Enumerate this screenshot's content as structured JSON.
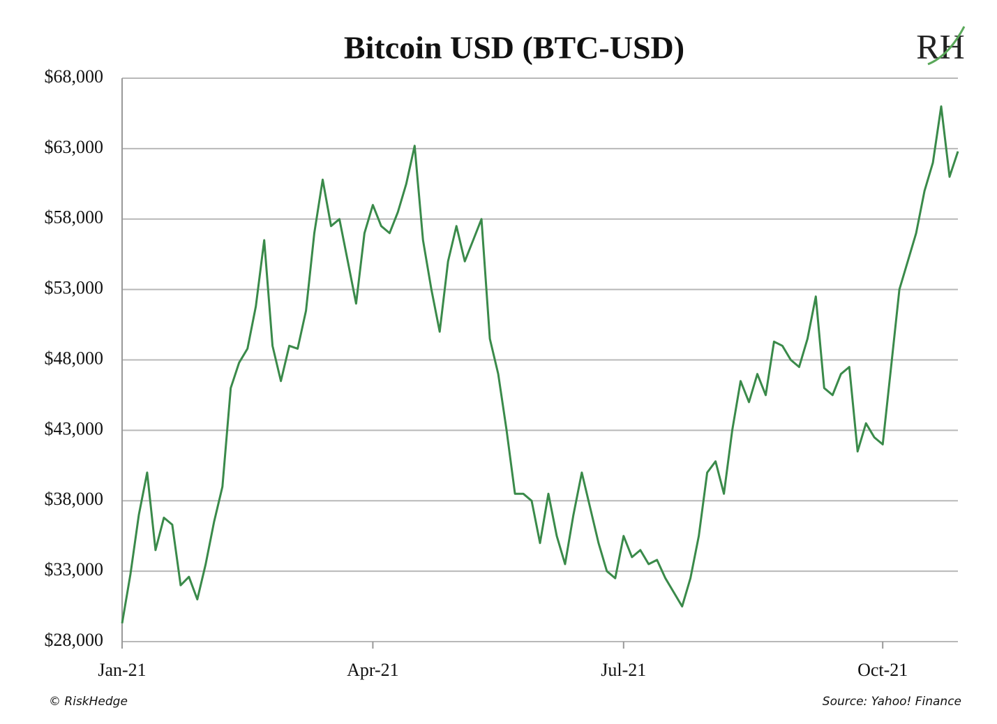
{
  "chart_data": {
    "type": "line",
    "title": "Bitcoin USD (BTC-USD)",
    "logo": "RH",
    "copyright": "© RiskHedge",
    "source": "Source: Yahoo! Finance",
    "categories": [
      "Jan-21",
      null,
      null,
      null,
      null,
      null,
      null,
      null,
      null,
      null,
      null,
      null,
      null,
      null,
      null,
      null,
      null,
      null,
      null,
      null,
      null,
      null,
      null,
      null,
      null,
      null,
      null,
      null,
      null,
      null,
      "Apr-21",
      null,
      null,
      null,
      null,
      null,
      null,
      null,
      null,
      null,
      null,
      null,
      null,
      null,
      null,
      null,
      null,
      null,
      null,
      null,
      null,
      null,
      null,
      null,
      null,
      null,
      null,
      null,
      null,
      null,
      "Jul-21",
      null,
      null,
      null,
      null,
      null,
      null,
      null,
      null,
      null,
      null,
      null,
      null,
      null,
      null,
      null,
      null,
      null,
      null,
      null,
      null,
      null,
      null,
      null,
      null,
      null,
      null,
      null,
      null,
      null,
      null,
      "Oct-21",
      null,
      null,
      null,
      null,
      null,
      null,
      null,
      null,
      null
    ],
    "series": [
      {
        "name": "BTC-USD",
        "color": "#3a8a4a",
        "values": [
          29300,
          32800,
          37000,
          40000,
          34500,
          36800,
          36300,
          32000,
          32600,
          31000,
          33500,
          36500,
          39000,
          46000,
          47800,
          48800,
          51800,
          56500,
          49000,
          46500,
          49000,
          48800,
          51500,
          57000,
          60800,
          57500,
          58000,
          55000,
          52000,
          57000,
          59000,
          57500,
          57000,
          58500,
          60500,
          63200,
          56500,
          53000,
          50000,
          55000,
          57500,
          55000,
          56500,
          58000,
          49500,
          47000,
          43000,
          38500,
          38500,
          38000,
          35000,
          38500,
          35500,
          33500,
          37000,
          40000,
          37500,
          35000,
          33000,
          32500,
          35500,
          34000,
          34500,
          33500,
          33800,
          32500,
          31500,
          30500,
          32500,
          35500,
          40000,
          40800,
          38500,
          43000,
          46500,
          45000,
          47000,
          45500,
          49300,
          49000,
          48000,
          47500,
          49500,
          52500,
          46000,
          45500,
          47000,
          47500,
          41500,
          43500,
          42500,
          42000,
          47500,
          53000,
          55000,
          57000,
          60000,
          62000,
          66000,
          61000,
          62800
        ]
      }
    ],
    "ylim": [
      28000,
      68000
    ],
    "yticks": [
      {
        "value": 28000,
        "label": "$28,000"
      },
      {
        "value": 33000,
        "label": "$33,000"
      },
      {
        "value": 38000,
        "label": "$38,000"
      },
      {
        "value": 43000,
        "label": "$43,000"
      },
      {
        "value": 48000,
        "label": "$48,000"
      },
      {
        "value": 53000,
        "label": "$53,000"
      },
      {
        "value": 58000,
        "label": "$58,000"
      },
      {
        "value": 63000,
        "label": "$63,000"
      },
      {
        "value": 68000,
        "label": "$68,000"
      }
    ],
    "grid": true
  }
}
